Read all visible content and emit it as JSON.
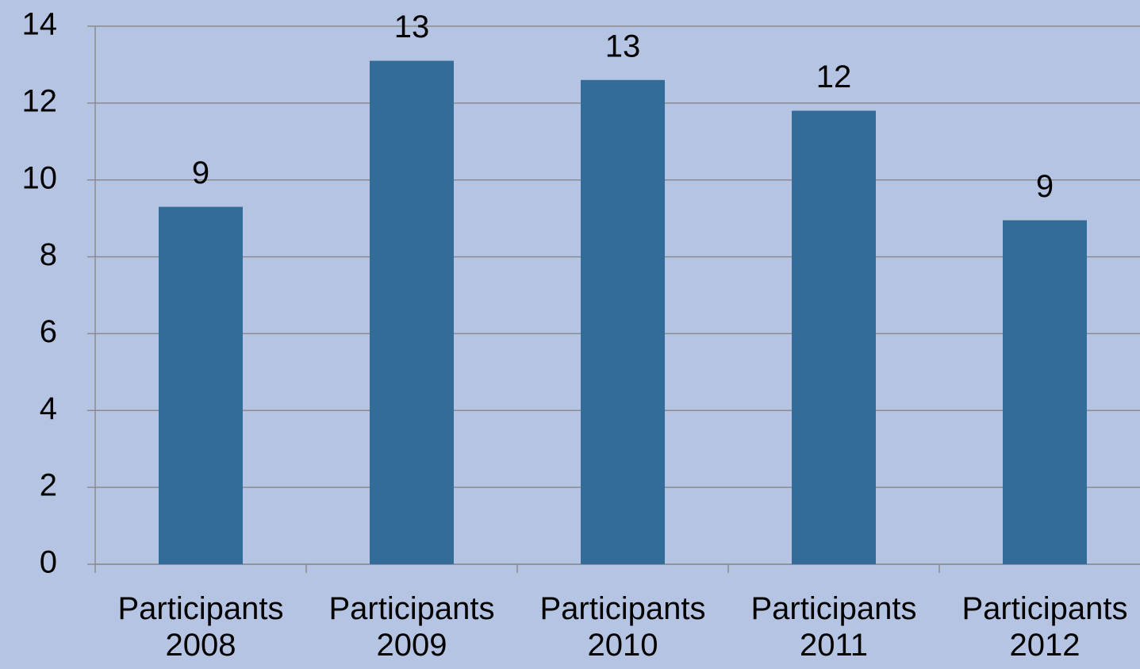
{
  "chart_data": {
    "type": "bar",
    "categories": [
      "Participants 2008",
      "Participants 2009",
      "Participants 2010",
      "Participants 2011",
      "Participants 2012"
    ],
    "values": [
      9.3,
      13.1,
      12.6,
      11.8,
      8.95
    ],
    "value_labels": [
      "9",
      "13",
      "13",
      "12",
      "9"
    ],
    "color": "#336b99",
    "ylim": [
      0,
      14
    ],
    "yticks": [
      0,
      2,
      4,
      6,
      8,
      10,
      12,
      14
    ],
    "grid": true
  }
}
